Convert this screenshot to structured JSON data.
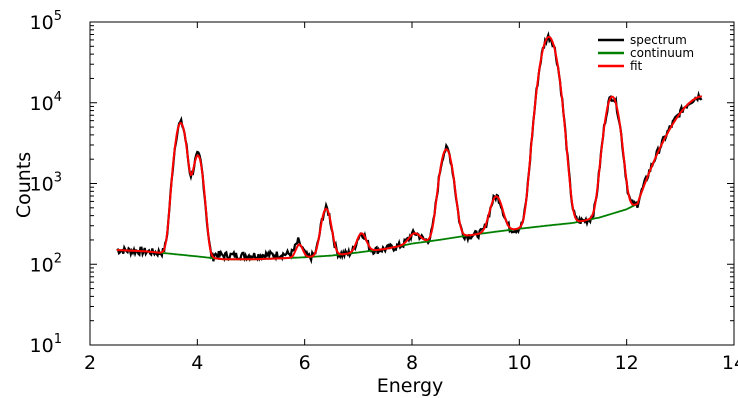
{
  "chart_data": {
    "type": "line",
    "title": "",
    "xlabel": "Energy",
    "ylabel": "Counts",
    "xlim": [
      2,
      14
    ],
    "ylim": [
      10,
      100000
    ],
    "yscale": "log",
    "grid": false,
    "legend_position": "top-right",
    "x_ticks": [
      2,
      4,
      6,
      8,
      10,
      12,
      14
    ],
    "y_ticks": [
      {
        "base": "10",
        "exp": "1",
        "value": 10
      },
      {
        "base": "10",
        "exp": "2",
        "value": 100
      },
      {
        "base": "10",
        "exp": "3",
        "value": 1000
      },
      {
        "base": "10",
        "exp": "4",
        "value": 10000
      },
      {
        "base": "10",
        "exp": "5",
        "value": 100000
      }
    ],
    "background": {
      "points": [
        [
          2.5,
          150
        ],
        [
          3.0,
          145
        ],
        [
          3.5,
          135
        ],
        [
          4.0,
          125
        ],
        [
          4.5,
          115
        ],
        [
          5.0,
          115
        ],
        [
          5.5,
          118
        ],
        [
          6.0,
          122
        ],
        [
          6.5,
          128
        ],
        [
          7.0,
          140
        ],
        [
          7.5,
          155
        ],
        [
          8.0,
          180
        ],
        [
          8.5,
          200
        ],
        [
          9.0,
          225
        ],
        [
          9.5,
          250
        ],
        [
          10.0,
          275
        ],
        [
          10.5,
          300
        ],
        [
          11.0,
          325
        ],
        [
          11.5,
          380
        ],
        [
          12.0,
          480
        ],
        [
          12.2,
          560
        ]
      ]
    },
    "peaks": [
      {
        "center": 3.69,
        "height": 5500,
        "width": 0.09
      },
      {
        "center": 4.01,
        "height": 2100,
        "width": 0.08
      },
      {
        "center": 5.9,
        "height": 55,
        "width": 0.06
      },
      {
        "center": 6.4,
        "height": 360,
        "width": 0.08
      },
      {
        "center": 7.06,
        "height": 100,
        "width": 0.08
      },
      {
        "center": 8.05,
        "height": 60,
        "width": 0.1
      },
      {
        "center": 8.64,
        "height": 2450,
        "width": 0.1
      },
      {
        "center": 9.57,
        "height": 440,
        "width": 0.1
      },
      {
        "center": 10.55,
        "height": 65000,
        "width": 0.13
      },
      {
        "center": 11.73,
        "height": 11500,
        "width": 0.11
      }
    ],
    "series": [
      {
        "name": "spectrum",
        "color": "#000000"
      },
      {
        "name": "continuum",
        "color": "#008000"
      },
      {
        "name": "fit",
        "color": "#ff0000"
      }
    ]
  }
}
